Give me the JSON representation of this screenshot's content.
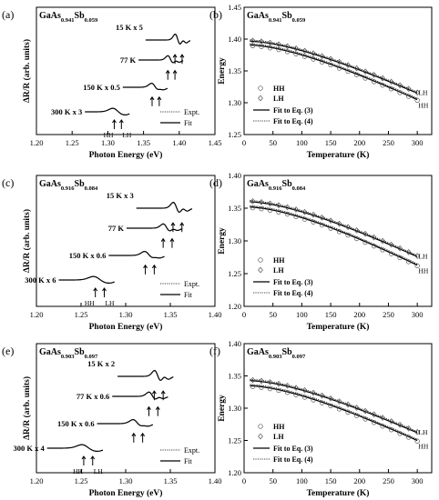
{
  "chart_data": [
    {
      "type": "line",
      "panel": "(a)",
      "title_base": "GaAs",
      "title_sub1": "0.941",
      "title_mid": "Sb",
      "title_sub2": "0.059",
      "xlabel": "Photon Energy (eV)",
      "ylabel": "ΔR/R (arb. units)",
      "xlim": [
        1.2,
        1.45
      ],
      "xticks": [
        "1.20",
        "1.25",
        "1.30",
        "1.35",
        "1.40",
        "1.45"
      ],
      "series": [
        {
          "name": "15 K x 5",
          "center": 1.398
        },
        {
          "name": "77 K",
          "center": 1.388
        },
        {
          "name": "150 K x 0.5",
          "center": 1.366
        },
        {
          "name": "300 K x 3",
          "center": 1.313
        }
      ],
      "marks": {
        "hh": "HH",
        "lh": "LH"
      },
      "legend": [
        {
          "name": "Expt.",
          "style": "dotted"
        },
        {
          "name": "Fit",
          "style": "solid"
        }
      ]
    },
    {
      "type": "scatter",
      "panel": "(b)",
      "title_base": "GaAs",
      "title_sub1": "0.941",
      "title_mid": "Sb",
      "title_sub2": "0.059",
      "xlabel": "Temperature (K)",
      "ylabel": "Energy",
      "xlim": [
        0,
        325
      ],
      "ylim": [
        1.25,
        1.45
      ],
      "xticks": [
        "0",
        "50",
        "100",
        "150",
        "200",
        "250",
        "300"
      ],
      "yticks": [
        "1.25",
        "1.30",
        "1.35",
        "1.40",
        "1.45"
      ],
      "hh": {
        "e0": 1.391,
        "e300": 1.305
      },
      "lh": {
        "e0": 1.397,
        "e300": 1.315
      },
      "end_labels": {
        "lh": "LH",
        "hh": "HH"
      },
      "legend": [
        {
          "name": "HH",
          "marker": "circle"
        },
        {
          "name": "LH",
          "marker": "diamond"
        },
        {
          "name": "Fit to Eq. (3)",
          "style": "solid"
        },
        {
          "name": "Fit to Eq. (4)",
          "style": "dotted"
        }
      ]
    },
    {
      "type": "line",
      "panel": "(c)",
      "title_base": "GaAs",
      "title_sub1": "0.916",
      "title_mid": "Sb",
      "title_sub2": "0.084",
      "xlabel": "Photon Energy (eV)",
      "ylabel": "ΔR/R (arb. units)",
      "xlim": [
        1.2,
        1.4
      ],
      "xticks": [
        "1.20",
        "1.25",
        "1.30",
        "1.35",
        "1.40"
      ],
      "series": [
        {
          "name": "15 K x 3",
          "center": 1.357
        },
        {
          "name": "77 K",
          "center": 1.346
        },
        {
          "name": "150 K x 0.6",
          "center": 1.326
        },
        {
          "name": "300 K x 6",
          "center": 1.27
        }
      ],
      "marks": {
        "hh": "HH",
        "lh": "LH"
      },
      "legend": [
        {
          "name": "Expt.",
          "style": "dotted"
        },
        {
          "name": "Fit",
          "style": "solid"
        }
      ]
    },
    {
      "type": "scatter",
      "panel": "(d)",
      "title_base": "GaAs",
      "title_sub1": "0.916",
      "title_mid": "Sb",
      "title_sub2": "0.084",
      "xlabel": "Temperature (K)",
      "ylabel": "Energy",
      "xlim": [
        0,
        325
      ],
      "ylim": [
        1.2,
        1.4
      ],
      "xticks": [
        "0",
        "50",
        "100",
        "150",
        "200",
        "250",
        "300"
      ],
      "yticks": [
        "1.20",
        "1.25",
        "1.30",
        "1.35",
        "1.40"
      ],
      "hh": {
        "e0": 1.352,
        "e300": 1.263
      },
      "lh": {
        "e0": 1.36,
        "e300": 1.276
      },
      "end_labels": {
        "lh": "LH",
        "hh": "HH"
      },
      "legend": [
        {
          "name": "HH",
          "marker": "circle"
        },
        {
          "name": "LH",
          "marker": "diamond"
        },
        {
          "name": "Fit to Eq. (3)",
          "style": "solid"
        },
        {
          "name": "Fit to Eq. (4)",
          "style": "dotted"
        }
      ]
    },
    {
      "type": "line",
      "panel": "(e)",
      "title_base": "GaAs",
      "title_sub1": "0.903",
      "title_mid": "Sb",
      "title_sub2": "0.097",
      "xlabel": "Photon Energy (eV)",
      "ylabel": "ΔR/R (arb. units)",
      "xlim": [
        1.2,
        1.4
      ],
      "xticks": [
        "1.20",
        "1.25",
        "1.30",
        "1.35",
        "1.40"
      ],
      "series": [
        {
          "name": "15 K x 2",
          "center": 1.336
        },
        {
          "name": "77 K x 0.6",
          "center": 1.33
        },
        {
          "name": "150 K x 0.6",
          "center": 1.313
        },
        {
          "name": "300 K x 4",
          "center": 1.257
        }
      ],
      "marks": {
        "hh": "HH",
        "lh": "LH"
      },
      "legend": [
        {
          "name": "Expt.",
          "style": "dotted"
        },
        {
          "name": "Fit",
          "style": "solid"
        }
      ]
    },
    {
      "type": "scatter",
      "panel": "(f)",
      "title_base": "GaAs",
      "title_sub1": "0.903",
      "title_mid": "Sb",
      "title_sub2": "0.097",
      "xlabel": "Temperature (K)",
      "ylabel": "Energy",
      "xlim": [
        0,
        325
      ],
      "ylim": [
        1.2,
        1.4
      ],
      "xticks": [
        "0",
        "50",
        "100",
        "150",
        "200",
        "250",
        "300"
      ],
      "yticks": [
        "1.20",
        "1.25",
        "1.30",
        "1.35",
        "1.40"
      ],
      "hh": {
        "e0": 1.335,
        "e300": 1.25
      },
      "lh": {
        "e0": 1.343,
        "e300": 1.262
      },
      "end_labels": {
        "lh": "LH",
        "hh": "HH"
      },
      "legend": [
        {
          "name": "HH",
          "marker": "circle"
        },
        {
          "name": "LH",
          "marker": "diamond"
        },
        {
          "name": "Fit to Eq. (3)",
          "style": "solid"
        },
        {
          "name": "Fit to Eq. (4)",
          "style": "dotted"
        }
      ]
    }
  ]
}
